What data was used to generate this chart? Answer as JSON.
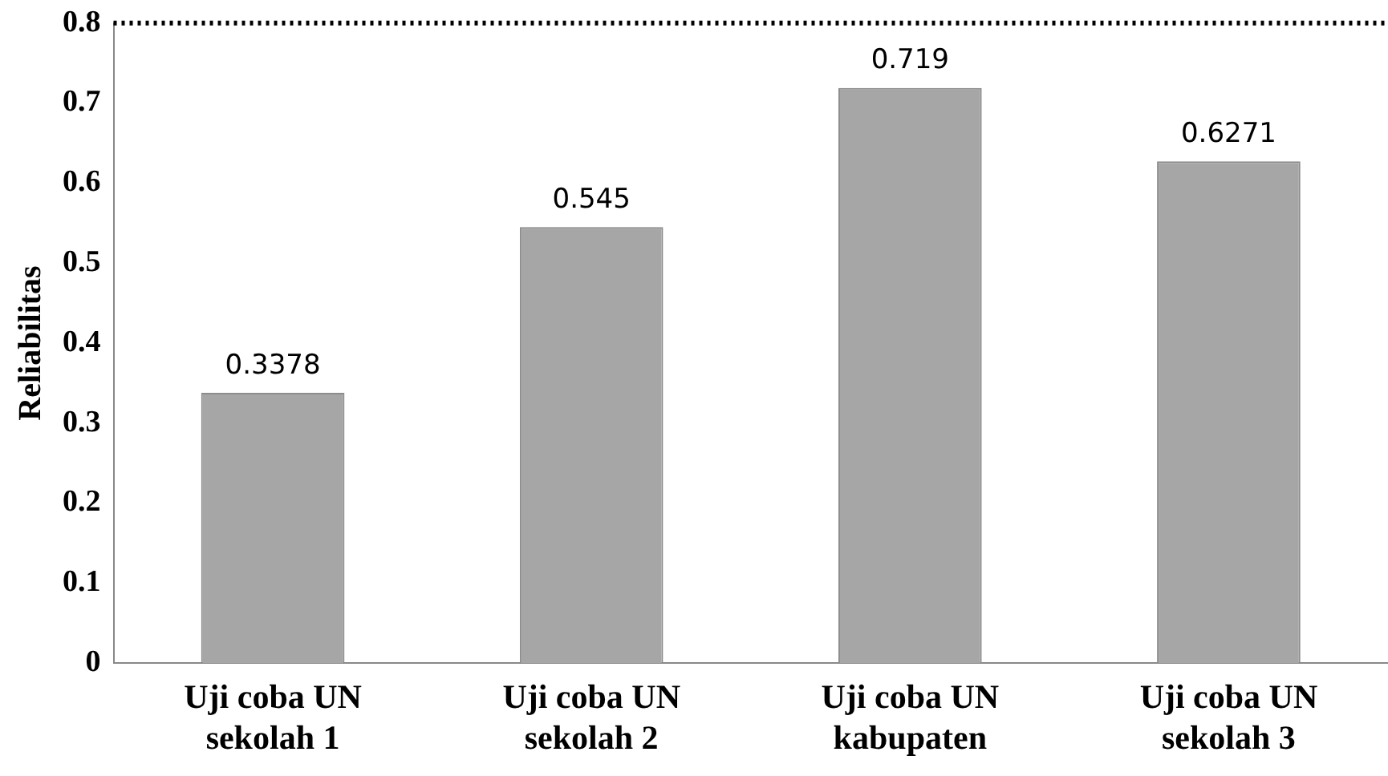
{
  "chart_data": {
    "type": "bar",
    "ylabel": "Reliabilitas",
    "categories": [
      "Uji coba UN sekolah 1",
      "Uji coba UN sekolah 2",
      "Uji coba UN kabupaten",
      "Uji coba UN sekolah 3"
    ],
    "values": [
      0.3378,
      0.545,
      0.719,
      0.6271
    ],
    "color": "#a6a6a6",
    "ylim": [
      0,
      0.8
    ],
    "yticks": [
      0,
      0.1,
      0.2,
      0.3,
      0.4,
      0.5,
      0.6,
      0.7,
      0.8
    ],
    "ref_lines": [
      {
        "axis": "y",
        "value": 0.8,
        "line_style": "dotted",
        "color": "#000000"
      }
    ],
    "data_labels": true,
    "grid": false,
    "legend": false
  }
}
